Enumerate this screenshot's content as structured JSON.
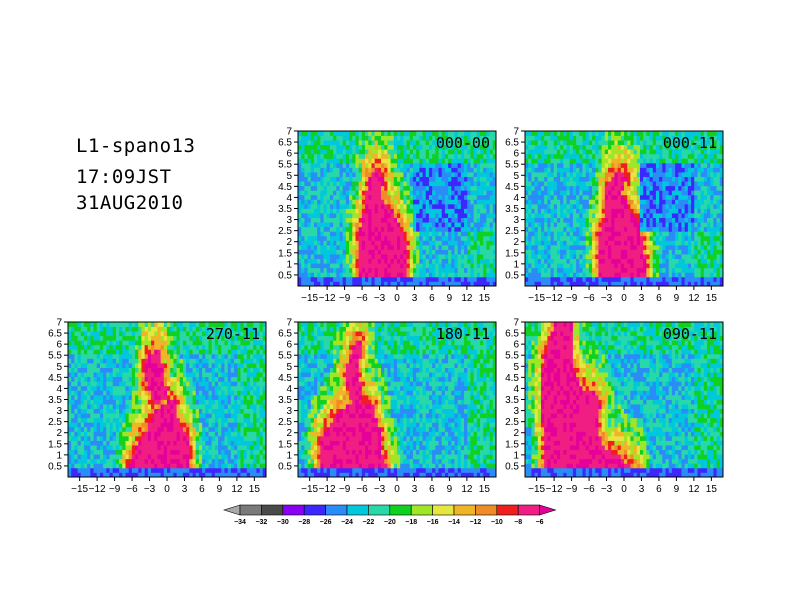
{
  "header": {
    "line1": "L1-spano13",
    "line2": "17:09JST",
    "line3": "31AUG2010"
  },
  "chart_data": [
    {
      "type": "heatmap",
      "label": "000-00",
      "xlim": [
        -17,
        17
      ],
      "ylim": [
        0,
        7
      ],
      "x_ticks": [
        "-15",
        "-12",
        "-9",
        "-6",
        "-3",
        "0",
        "3",
        "6",
        "9",
        "12",
        "15"
      ],
      "y_ticks": [
        "0.5",
        "1",
        "1.5",
        "2",
        "2.5",
        "3",
        "3.5",
        "4",
        "4.5",
        "5",
        "5.5",
        "6",
        "6.5",
        "7"
      ]
    },
    {
      "type": "heatmap",
      "label": "000-11",
      "xlim": [
        -17,
        17
      ],
      "ylim": [
        0,
        7
      ],
      "x_ticks": [
        "-15",
        "-12",
        "-9",
        "-6",
        "-3",
        "0",
        "3",
        "6",
        "9",
        "12",
        "15"
      ],
      "y_ticks": [
        "0.5",
        "1",
        "1.5",
        "2",
        "2.5",
        "3",
        "3.5",
        "4",
        "4.5",
        "5",
        "5.5",
        "6",
        "6.5",
        "7"
      ]
    },
    {
      "type": "heatmap",
      "label": "270-11",
      "xlim": [
        -17,
        17
      ],
      "ylim": [
        0,
        7
      ],
      "x_ticks": [
        "-15",
        "-12",
        "-9",
        "-6",
        "-3",
        "0",
        "3",
        "6",
        "9",
        "12",
        "15"
      ],
      "y_ticks": [
        "0.5",
        "1",
        "1.5",
        "2",
        "2.5",
        "3",
        "3.5",
        "4",
        "4.5",
        "5",
        "5.5",
        "6",
        "6.5",
        "7"
      ]
    },
    {
      "type": "heatmap",
      "label": "180-11",
      "xlim": [
        -17,
        17
      ],
      "ylim": [
        0,
        7
      ],
      "x_ticks": [
        "-15",
        "-12",
        "-9",
        "-6",
        "-3",
        "0",
        "3",
        "6",
        "9",
        "12",
        "15"
      ],
      "y_ticks": [
        "0.5",
        "1",
        "1.5",
        "2",
        "2.5",
        "3",
        "3.5",
        "4",
        "4.5",
        "5",
        "5.5",
        "6",
        "6.5",
        "7"
      ]
    },
    {
      "type": "heatmap",
      "label": "090-11",
      "xlim": [
        -17,
        17
      ],
      "ylim": [
        0,
        7
      ],
      "x_ticks": [
        "-15",
        "-12",
        "-9",
        "-6",
        "-3",
        "0",
        "3",
        "6",
        "9",
        "12",
        "15"
      ],
      "y_ticks": [
        "0.5",
        "1",
        "1.5",
        "2",
        "2.5",
        "3",
        "3.5",
        "4",
        "4.5",
        "5",
        "5.5",
        "6",
        "6.5",
        "7"
      ]
    }
  ],
  "colorbar": {
    "labels": [
      "-34",
      "-32",
      "-30",
      "-28",
      "-26",
      "-24",
      "-22",
      "-20",
      "-18",
      "-16",
      "-14",
      "-12",
      "-10",
      "-8",
      "-6"
    ],
    "colors": [
      "#a8a8a8",
      "#7a7a7a",
      "#4a4a4a",
      "#8a00f0",
      "#3c28ff",
      "#2a8cf8",
      "#00c8dc",
      "#28d8a8",
      "#10d020",
      "#a0e628",
      "#e6e640",
      "#f0b428",
      "#f08c28",
      "#f01e1e",
      "#f01e82",
      "#e6009a"
    ]
  }
}
